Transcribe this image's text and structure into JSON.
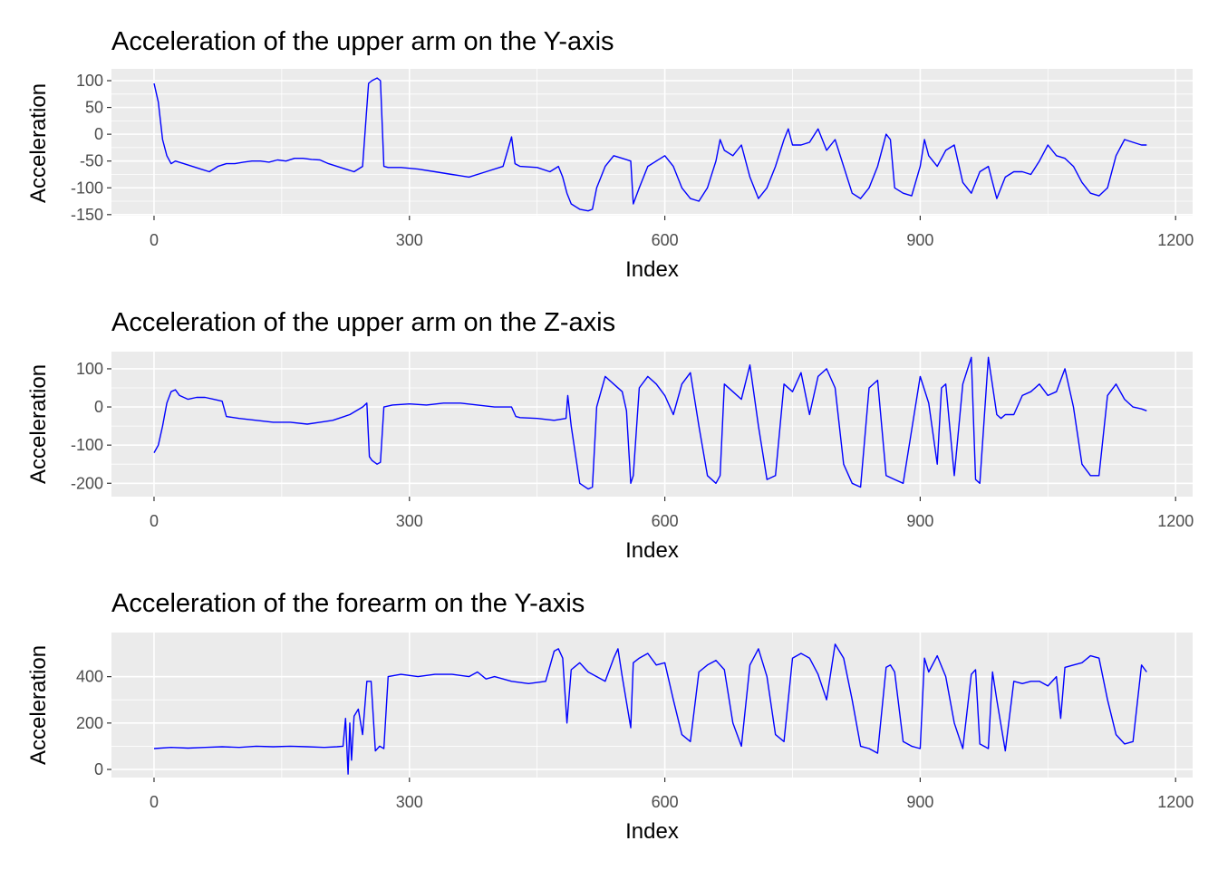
{
  "chart_data": [
    {
      "type": "line",
      "title": "Acceleration of the upper arm on the Y-axis",
      "xlabel": "Index",
      "ylabel": "Acceleration",
      "xlim": [
        -50,
        1220
      ],
      "ylim": [
        -152,
        122
      ],
      "x_ticks": [
        0,
        300,
        600,
        900,
        1200
      ],
      "x_tick_labels": [
        "0",
        "300",
        "600",
        "900",
        "1200"
      ],
      "y_ticks": [
        100,
        50,
        0,
        -50,
        -100,
        -150
      ],
      "y_tick_labels": [
        "100",
        "50",
        "0",
        "-50",
        "-100",
        "-150"
      ],
      "grid": true,
      "series": [
        {
          "color": "#0000ff",
          "x": [
            0,
            5,
            10,
            15,
            20,
            25,
            35,
            45,
            55,
            65,
            75,
            85,
            95,
            105,
            115,
            125,
            135,
            145,
            155,
            165,
            175,
            185,
            195,
            205,
            215,
            225,
            235,
            245,
            252,
            256,
            262,
            266,
            270,
            275,
            290,
            310,
            330,
            350,
            370,
            390,
            410,
            420,
            424,
            430,
            450,
            465,
            475,
            480,
            485,
            490,
            500,
            510,
            515,
            520,
            530,
            540,
            550,
            560,
            563,
            570,
            580,
            590,
            600,
            610,
            620,
            630,
            640,
            650,
            660,
            665,
            670,
            680,
            690,
            700,
            710,
            720,
            730,
            740,
            745,
            750,
            760,
            770,
            780,
            785,
            790,
            800,
            810,
            820,
            830,
            840,
            850,
            860,
            865,
            870,
            880,
            890,
            900,
            905,
            910,
            920,
            930,
            940,
            950,
            960,
            970,
            980,
            990,
            1000,
            1010,
            1020,
            1030,
            1040,
            1050,
            1060,
            1070,
            1080,
            1090,
            1100,
            1110,
            1120,
            1130,
            1140,
            1150,
            1160,
            1166
          ],
          "y": [
            95,
            60,
            -10,
            -40,
            -55,
            -50,
            -55,
            -60,
            -65,
            -70,
            -60,
            -55,
            -55,
            -52,
            -50,
            -50,
            -52,
            -48,
            -50,
            -45,
            -45,
            -47,
            -48,
            -55,
            -60,
            -65,
            -70,
            -60,
            95,
            100,
            105,
            100,
            -60,
            -62,
            -62,
            -65,
            -70,
            -75,
            -80,
            -70,
            -60,
            -5,
            -55,
            -60,
            -62,
            -70,
            -60,
            -80,
            -110,
            -130,
            -140,
            -143,
            -140,
            -100,
            -60,
            -40,
            -45,
            -50,
            -130,
            -100,
            -60,
            -50,
            -40,
            -60,
            -100,
            -120,
            -125,
            -100,
            -50,
            -10,
            -30,
            -40,
            -20,
            -80,
            -120,
            -100,
            -60,
            -10,
            10,
            -20,
            -20,
            -15,
            10,
            -10,
            -30,
            -10,
            -60,
            -110,
            -120,
            -100,
            -60,
            0,
            -10,
            -100,
            -110,
            -115,
            -60,
            -10,
            -40,
            -60,
            -30,
            -20,
            -90,
            -110,
            -70,
            -60,
            -120,
            -80,
            -70,
            -70,
            -75,
            -50,
            -20,
            -40,
            -45,
            -60,
            -90,
            -110,
            -115,
            -100,
            -40,
            -10,
            -15,
            -20,
            -20
          ]
        }
      ]
    },
    {
      "type": "line",
      "title": "Acceleration of the upper arm on the Z-axis",
      "xlabel": "Index",
      "ylabel": "Acceleration",
      "xlim": [
        -50,
        1220
      ],
      "ylim": [
        -235,
        145
      ],
      "x_ticks": [
        0,
        300,
        600,
        900,
        1200
      ],
      "x_tick_labels": [
        "0",
        "300",
        "600",
        "900",
        "1200"
      ],
      "y_ticks": [
        100,
        0,
        -100,
        -200
      ],
      "y_tick_labels": [
        "100",
        "0",
        "-100",
        "-200"
      ],
      "grid": true,
      "series": [
        {
          "color": "#0000ff",
          "x": [
            0,
            5,
            10,
            15,
            20,
            25,
            30,
            40,
            50,
            60,
            70,
            80,
            85,
            100,
            120,
            140,
            160,
            180,
            195,
            210,
            230,
            245,
            250,
            253,
            256,
            262,
            266,
            270,
            280,
            300,
            320,
            340,
            360,
            380,
            400,
            420,
            425,
            430,
            450,
            470,
            484,
            486,
            490,
            500,
            510,
            515,
            520,
            530,
            540,
            550,
            555,
            560,
            563,
            570,
            580,
            590,
            600,
            610,
            620,
            630,
            640,
            650,
            660,
            665,
            670,
            680,
            690,
            700,
            710,
            720,
            730,
            740,
            750,
            760,
            770,
            780,
            790,
            800,
            810,
            820,
            830,
            840,
            850,
            860,
            870,
            880,
            890,
            900,
            910,
            920,
            925,
            930,
            940,
            950,
            960,
            965,
            970,
            980,
            990,
            995,
            1000,
            1010,
            1020,
            1030,
            1040,
            1050,
            1060,
            1070,
            1080,
            1090,
            1100,
            1110,
            1120,
            1130,
            1140,
            1150,
            1160,
            1166
          ],
          "y": [
            -120,
            -100,
            -50,
            10,
            40,
            45,
            30,
            20,
            25,
            25,
            20,
            15,
            -25,
            -30,
            -35,
            -40,
            -40,
            -45,
            -40,
            -35,
            -20,
            0,
            10,
            -130,
            -140,
            -150,
            -145,
            0,
            5,
            8,
            5,
            10,
            10,
            5,
            0,
            0,
            -25,
            -28,
            -30,
            -35,
            -30,
            30,
            -50,
            -200,
            -215,
            -210,
            0,
            80,
            60,
            40,
            -10,
            -200,
            -180,
            50,
            80,
            60,
            30,
            -20,
            60,
            90,
            -50,
            -180,
            -200,
            -180,
            60,
            40,
            20,
            110,
            -50,
            -190,
            -180,
            60,
            40,
            90,
            -20,
            80,
            100,
            50,
            -150,
            -200,
            -210,
            50,
            70,
            -180,
            -190,
            -200,
            -60,
            80,
            10,
            -150,
            50,
            60,
            -180,
            60,
            130,
            -190,
            -200,
            130,
            -20,
            -30,
            -20,
            -20,
            30,
            40,
            60,
            30,
            40,
            100,
            0,
            -150,
            -180,
            -180,
            30,
            60,
            20,
            0,
            -5,
            -10
          ],
          "_note": ""
        }
      ]
    },
    {
      "type": "line",
      "title": "Acceleration of the forearm on the Y-axis",
      "xlabel": "Index",
      "ylabel": "Acceleration",
      "xlim": [
        -50,
        1220
      ],
      "ylim": [
        -35,
        590
      ],
      "x_ticks": [
        0,
        300,
        600,
        900,
        1200
      ],
      "x_tick_labels": [
        "0",
        "300",
        "600",
        "900",
        "1200"
      ],
      "y_ticks": [
        400,
        200,
        0
      ],
      "y_tick_labels": [
        "400",
        "200",
        "0"
      ],
      "grid": true,
      "series": [
        {
          "color": "#0000ff",
          "x": [
            0,
            20,
            40,
            60,
            80,
            100,
            120,
            140,
            160,
            180,
            200,
            215,
            222,
            225,
            228,
            230,
            232,
            235,
            240,
            245,
            250,
            255,
            260,
            265,
            270,
            275,
            290,
            310,
            330,
            350,
            370,
            380,
            390,
            400,
            420,
            440,
            460,
            470,
            475,
            480,
            485,
            490,
            500,
            510,
            520,
            530,
            540,
            545,
            550,
            560,
            563,
            570,
            580,
            590,
            600,
            610,
            620,
            630,
            640,
            650,
            660,
            670,
            680,
            690,
            700,
            710,
            720,
            730,
            740,
            750,
            760,
            770,
            780,
            790,
            800,
            810,
            820,
            830,
            840,
            850,
            860,
            865,
            870,
            880,
            890,
            900,
            905,
            910,
            920,
            930,
            940,
            950,
            960,
            965,
            970,
            980,
            985,
            990,
            1000,
            1010,
            1020,
            1030,
            1040,
            1050,
            1060,
            1065,
            1070,
            1080,
            1090,
            1100,
            1110,
            1120,
            1130,
            1140,
            1150,
            1160,
            1166
          ],
          "y": [
            90,
            95,
            92,
            95,
            98,
            95,
            100,
            98,
            100,
            98,
            95,
            98,
            100,
            220,
            -20,
            200,
            40,
            230,
            260,
            150,
            380,
            380,
            80,
            100,
            90,
            400,
            410,
            400,
            410,
            410,
            400,
            420,
            390,
            400,
            380,
            370,
            380,
            510,
            520,
            480,
            200,
            430,
            460,
            420,
            400,
            380,
            480,
            520,
            400,
            180,
            460,
            480,
            500,
            450,
            460,
            300,
            150,
            120,
            420,
            450,
            470,
            430,
            200,
            100,
            450,
            520,
            400,
            150,
            120,
            480,
            500,
            480,
            410,
            300,
            540,
            480,
            300,
            100,
            90,
            70,
            440,
            450,
            420,
            120,
            100,
            90,
            480,
            420,
            490,
            400,
            200,
            90,
            410,
            430,
            110,
            90,
            420,
            300,
            80,
            380,
            370,
            380,
            380,
            360,
            400,
            220,
            440,
            450,
            460,
            490,
            480,
            300,
            150,
            110,
            120,
            450,
            420
          ]
        }
      ]
    }
  ]
}
